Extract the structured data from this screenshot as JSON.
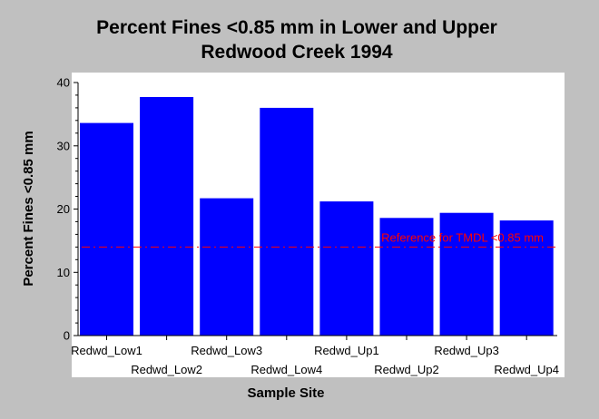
{
  "chart_data": {
    "type": "bar",
    "title_lines": [
      "Percent Fines <0.85 mm in Lower and Upper",
      "Redwood Creek 1994"
    ],
    "xlabel": "Sample Site",
    "ylabel": "Percent Fines <0.85 mm",
    "categories": [
      "Redwd_Low1",
      "Redwd_Low2",
      "Redwd_Low3",
      "Redwd_Low4",
      "Redwd_Up1",
      "Redwd_Up2",
      "Redwd_Up3",
      "Redwd_Up4"
    ],
    "values": [
      33.6,
      37.7,
      21.7,
      36.0,
      21.2,
      18.6,
      19.4,
      18.2
    ],
    "ylim": [
      0,
      40
    ],
    "yticks": [
      "0",
      "10",
      "20",
      "30",
      "40"
    ],
    "grid": false,
    "bar_color": "#0000ff",
    "background_color": "#c0c0c0",
    "plot_background_color": "#ffffff",
    "reference_line": {
      "label": "Reference for TMDL <0.85 mm",
      "value": 14,
      "color": "#ff0000"
    }
  }
}
